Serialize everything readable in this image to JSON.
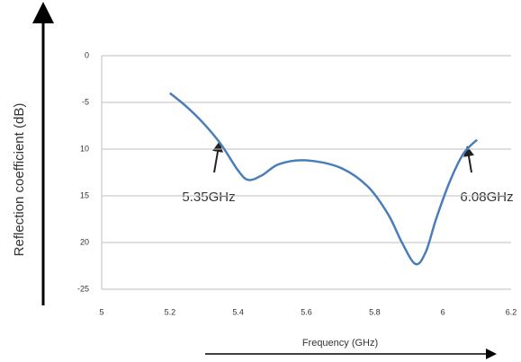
{
  "chart_data": {
    "type": "line",
    "x_label": "Frequency (GHz)",
    "y_label": "Reflection coefficient (dB)",
    "x": [
      5.2,
      5.25,
      5.3,
      5.35,
      5.4,
      5.43,
      5.47,
      5.52,
      5.6,
      5.7,
      5.78,
      5.84,
      5.88,
      5.92,
      5.95,
      5.98,
      6.02,
      6.06,
      6.1
    ],
    "values": [
      -4,
      -5.5,
      -7.3,
      -9.5,
      -12.3,
      -13.3,
      -12.8,
      -11.6,
      -11.2,
      -12,
      -14,
      -17,
      -20,
      -22.3,
      -21,
      -17.5,
      -13.5,
      -10.5,
      -9
    ],
    "color": "#4a7ebb",
    "xlim": [
      5,
      6.2
    ],
    "xticks": [
      5,
      5.2,
      5.4,
      5.6,
      5.8,
      6,
      6.2
    ],
    "ylim": [
      -25,
      0
    ],
    "yticks": [
      0,
      -5,
      {
        "value": -10,
        "label": "10"
      },
      {
        "value": -15,
        "label": "15"
      },
      {
        "value": -20,
        "label": "20"
      },
      -25
    ],
    "grid": true,
    "annotations": [
      "5.35GHz",
      "6.08GHz"
    ]
  }
}
